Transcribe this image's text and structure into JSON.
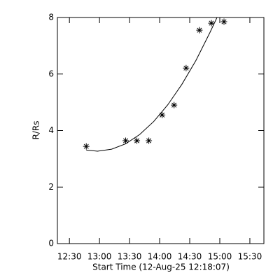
{
  "chart_data": {
    "type": "scatter",
    "xlabel": "Start Time (12-Aug-25 12:18:07)",
    "ylabel": "R/Rs",
    "xlim": [
      738,
      944
    ],
    "ylim": [
      0,
      8
    ],
    "xticks": [
      {
        "value": 750,
        "label": "12:30"
      },
      {
        "value": 780,
        "label": "13:00"
      },
      {
        "value": 810,
        "label": "13:30"
      },
      {
        "value": 840,
        "label": "14:00"
      },
      {
        "value": 870,
        "label": "14:30"
      },
      {
        "value": 900,
        "label": "15:00"
      },
      {
        "value": 930,
        "label": "15:30"
      }
    ],
    "yticks": [
      0,
      2,
      4,
      6,
      8
    ],
    "series": [
      {
        "marker": "asterisk",
        "color": "#000000",
        "x": [
          766.8,
          806.1,
          817.3,
          829.2,
          842.5,
          854.4,
          866.4,
          879.7,
          891.6,
          904.2
        ],
        "values": [
          3.44,
          3.64,
          3.64,
          3.64,
          4.55,
          4.9,
          6.21,
          7.55,
          7.8,
          7.85
        ]
      },
      {
        "marker": "line",
        "color": "#000000",
        "x": [
          766.8,
          778.0,
          792.1,
          806.1,
          820.1,
          834.1,
          848.1,
          862.1,
          876.2,
          890.2,
          897.2
        ],
        "values": [
          3.31,
          3.27,
          3.34,
          3.53,
          3.86,
          4.32,
          4.91,
          5.63,
          6.48,
          7.47,
          8.0
        ]
      }
    ]
  }
}
